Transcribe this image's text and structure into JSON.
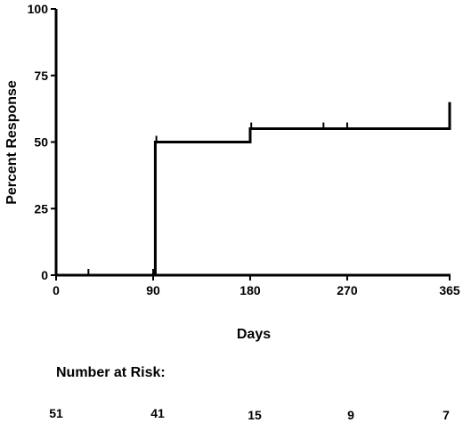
{
  "chart_data": {
    "type": "line",
    "step": true,
    "xlabel": "Days",
    "ylabel": "Percent Response",
    "xlim": [
      0,
      365
    ],
    "ylim": [
      0,
      100
    ],
    "x_ticks": [
      0,
      90,
      180,
      270,
      365
    ],
    "y_ticks": [
      0,
      25,
      50,
      75,
      100
    ],
    "grid": false,
    "series": [
      {
        "steps": [
          {
            "x": 0,
            "y": 0
          },
          {
            "x": 92,
            "y": 0
          },
          {
            "x": 92,
            "y": 50
          },
          {
            "x": 180,
            "y": 50
          },
          {
            "x": 180,
            "y": 55
          },
          {
            "x": 365,
            "y": 55
          },
          {
            "x": 365,
            "y": 65
          }
        ],
        "censored": [
          {
            "x": 30,
            "y": 0
          },
          {
            "x": 90,
            "y": 0
          },
          {
            "x": 93,
            "y": 50
          },
          {
            "x": 181,
            "y": 55
          },
          {
            "x": 248,
            "y": 55
          },
          {
            "x": 270,
            "y": 55
          }
        ]
      }
    ]
  },
  "number_at_risk": {
    "title": "Number at Risk:",
    "values": [
      "51",
      "41",
      "15",
      "9",
      "7"
    ]
  }
}
